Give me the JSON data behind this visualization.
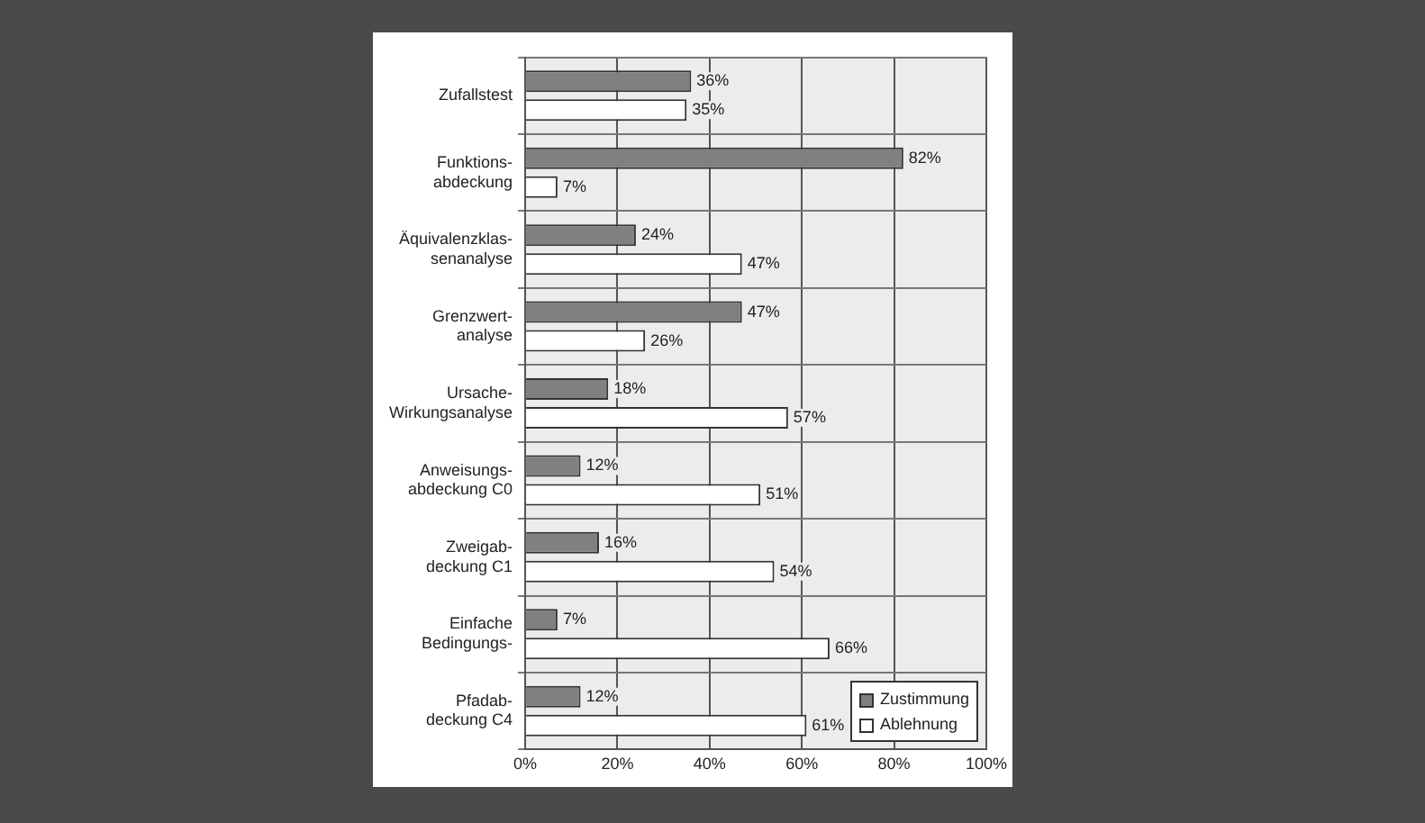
{
  "chart_data": {
    "type": "bar",
    "orientation": "horizontal",
    "categories": [
      "Zufallstest",
      "Funktions-\nabdeckung",
      "Äquivalenzklas-\nsenanalyse",
      "Grenzwert-\nanalyse",
      "Ursache-\nWirkungsanalyse",
      "Anweisungs-\nabdeckung C0",
      "Zweigab-\ndeckung C1",
      "Einfache\nBedingungs-",
      "Pfadab-\ndeckung C4"
    ],
    "series": [
      {
        "name": "Zustimmung",
        "color": "#808080",
        "values": [
          36,
          82,
          24,
          47,
          18,
          12,
          16,
          7,
          12
        ],
        "value_labels": [
          "36%",
          "82%",
          "24%",
          "47%",
          "18%",
          "12%",
          "16%",
          "7%",
          "12%"
        ]
      },
      {
        "name": "Ablehnung",
        "color": "#ffffff",
        "values": [
          35,
          7,
          47,
          26,
          57,
          51,
          54,
          66,
          61
        ],
        "value_labels": [
          "35%",
          "7%",
          "47%",
          "26%",
          "57%",
          "51%",
          "54%",
          "66%",
          "61%"
        ]
      }
    ],
    "xlim": [
      0,
      100
    ],
    "xticks": [
      {
        "value": 0,
        "label": "0%"
      },
      {
        "value": 20,
        "label": "20%"
      },
      {
        "value": 40,
        "label": "40%"
      },
      {
        "value": 60,
        "label": "60%"
      },
      {
        "value": 80,
        "label": "80%"
      },
      {
        "value": 100,
        "label": "100%"
      }
    ],
    "grid": true,
    "legend": "bottom right"
  }
}
